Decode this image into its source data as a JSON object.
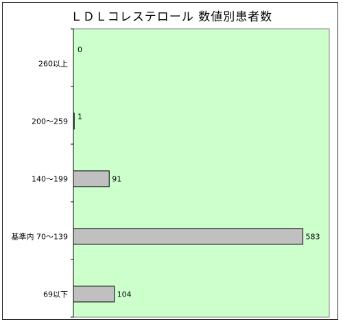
{
  "chart_data": {
    "type": "bar",
    "orientation": "horizontal",
    "title": "ＬＤＬコレステロール 数値別患者数",
    "categories": [
      "260以上",
      "200～259",
      "140～199",
      "基準内 70～139",
      "69以下"
    ],
    "values": [
      0,
      1,
      91,
      583,
      104
    ],
    "xlim": [
      0,
      650
    ],
    "xlabel": "",
    "ylabel": "",
    "grid": false,
    "legend": "none",
    "colors": {
      "plot_background": "#ccffcc",
      "bar_fill": "#c0c0c0",
      "bar_stroke": "#000000"
    }
  }
}
